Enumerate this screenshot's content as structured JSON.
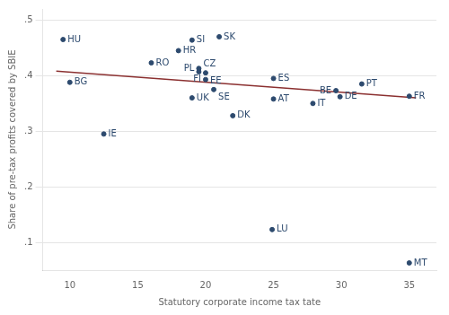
{
  "chart_data": {
    "type": "scatter",
    "xlabel": "Statutory corporate income tax tate",
    "ylabel": "Share of pre-tax profits covered by SBIE",
    "xlim": [
      8.0,
      37.0
    ],
    "ylim": [
      0.05,
      0.52
    ],
    "xticks": [
      10,
      15,
      20,
      25,
      30,
      35
    ],
    "yticks": [
      {
        "value": 0.1,
        "label": ".1"
      },
      {
        "value": 0.2,
        "label": ".2"
      },
      {
        "value": 0.3,
        "label": ".3"
      },
      {
        "value": 0.4,
        "label": ".4"
      },
      {
        "value": 0.5,
        "label": ".5"
      }
    ],
    "grid": "y",
    "series": [
      {
        "type": "scatter",
        "color": "#2d4a6e",
        "x": [
          9.5,
          10.0,
          12.5,
          16.0,
          18.0,
          19.0,
          19.5,
          19.5,
          20.0,
          20.0,
          21.0,
          19.0,
          20.6,
          22.0,
          25.0,
          25.0,
          24.9,
          27.9,
          29.6,
          29.9,
          31.5,
          35.0,
          35.0
        ],
        "values": [
          0.465,
          0.388,
          0.295,
          0.423,
          0.445,
          0.464,
          0.413,
          0.407,
          0.405,
          0.393,
          0.47,
          0.36,
          0.375,
          0.328,
          0.395,
          0.358,
          0.123,
          0.35,
          0.373,
          0.362,
          0.385,
          0.363,
          0.063
        ],
        "point_labels": [
          "HU",
          "BG",
          "IE",
          "RO",
          "HR",
          "SI",
          "PL",
          "CZ",
          "EE",
          "FI",
          "SK",
          "UK",
          "SE",
          "DK",
          "ES",
          "AT",
          "LU",
          "IT",
          "BE",
          "DE",
          "PT",
          "FR",
          "MT"
        ]
      },
      {
        "type": "line",
        "color": "#8b3030",
        "x": [
          9.0,
          35.5
        ],
        "values": [
          0.408,
          0.36
        ]
      }
    ]
  }
}
